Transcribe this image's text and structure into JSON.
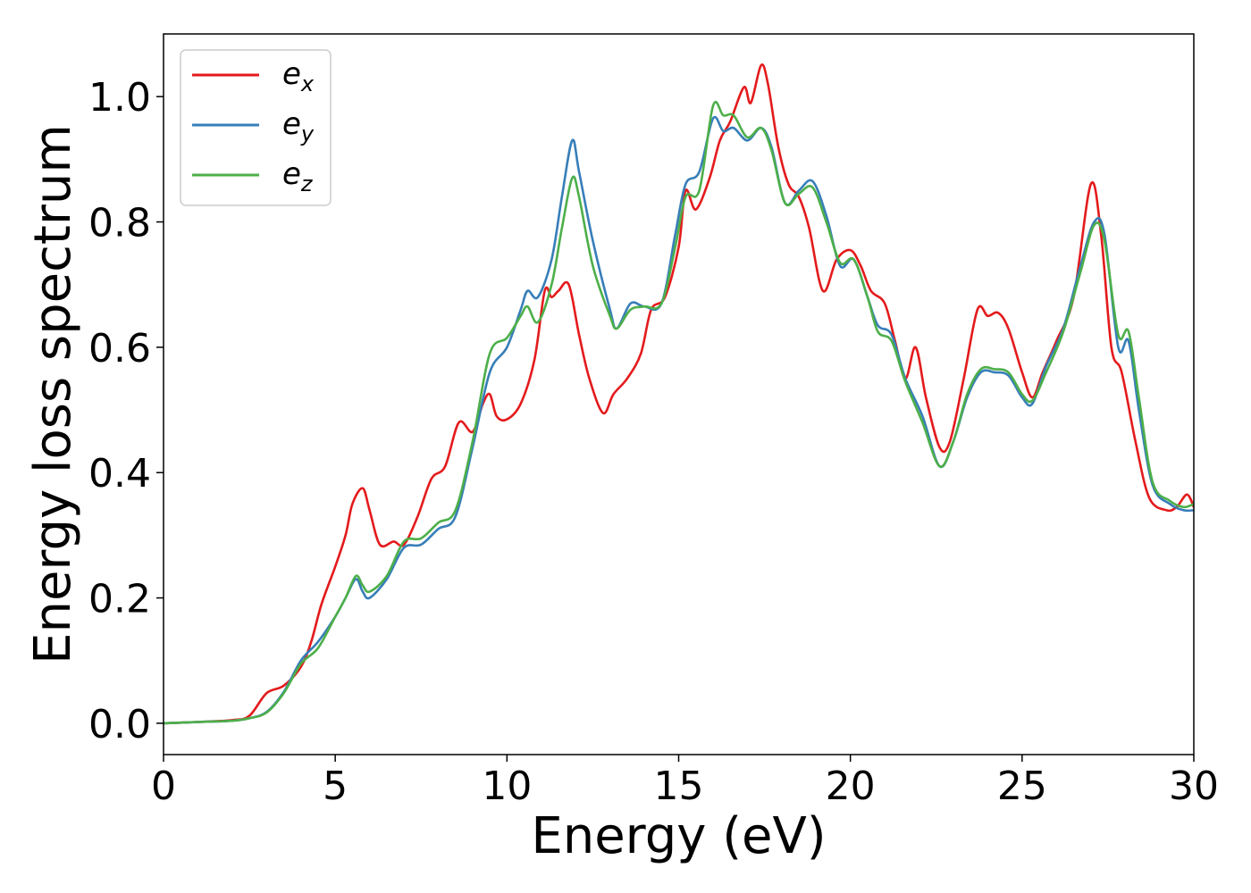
{
  "chart_data": {
    "type": "line",
    "xlabel": "Energy (eV)",
    "ylabel": "Energy loss spectrum",
    "xlim": [
      0,
      30
    ],
    "ylim": [
      -0.05,
      1.1
    ],
    "xticks": [
      0,
      5,
      10,
      15,
      20,
      25,
      30
    ],
    "xtick_labels": [
      "0",
      "5",
      "10",
      "15",
      "20",
      "25",
      "30"
    ],
    "yticks": [
      0.0,
      0.2,
      0.4,
      0.6,
      0.8,
      1.0
    ],
    "ytick_labels": [
      "0.0",
      "0.2",
      "0.4",
      "0.6",
      "0.8",
      "1.0"
    ],
    "grid": false,
    "legend_position": "top-left",
    "series": [
      {
        "name": "e_x",
        "label_main": "e",
        "label_sub": "x",
        "color": "#e41a1c",
        "points": [
          [
            0,
            0.0
          ],
          [
            1,
            0.002
          ],
          [
            2,
            0.005
          ],
          [
            2.5,
            0.012
          ],
          [
            3.0,
            0.048
          ],
          [
            3.5,
            0.06
          ],
          [
            4.0,
            0.09
          ],
          [
            4.3,
            0.13
          ],
          [
            4.6,
            0.19
          ],
          [
            5.0,
            0.25
          ],
          [
            5.3,
            0.3
          ],
          [
            5.5,
            0.35
          ],
          [
            5.8,
            0.375
          ],
          [
            6.0,
            0.34
          ],
          [
            6.3,
            0.285
          ],
          [
            6.7,
            0.29
          ],
          [
            7.0,
            0.285
          ],
          [
            7.4,
            0.33
          ],
          [
            7.8,
            0.39
          ],
          [
            8.2,
            0.41
          ],
          [
            8.6,
            0.48
          ],
          [
            9.0,
            0.465
          ],
          [
            9.3,
            0.51
          ],
          [
            9.5,
            0.525
          ],
          [
            9.7,
            0.49
          ],
          [
            10.0,
            0.485
          ],
          [
            10.4,
            0.51
          ],
          [
            10.8,
            0.58
          ],
          [
            11.1,
            0.69
          ],
          [
            11.3,
            0.68
          ],
          [
            11.5,
            0.69
          ],
          [
            11.8,
            0.7
          ],
          [
            12.1,
            0.62
          ],
          [
            12.4,
            0.55
          ],
          [
            12.8,
            0.495
          ],
          [
            13.1,
            0.525
          ],
          [
            13.5,
            0.55
          ],
          [
            13.9,
            0.59
          ],
          [
            14.2,
            0.66
          ],
          [
            14.6,
            0.68
          ],
          [
            15.0,
            0.76
          ],
          [
            15.2,
            0.85
          ],
          [
            15.5,
            0.82
          ],
          [
            15.9,
            0.87
          ],
          [
            16.2,
            0.93
          ],
          [
            16.5,
            0.96
          ],
          [
            16.9,
            1.015
          ],
          [
            17.1,
            0.99
          ],
          [
            17.4,
            1.05
          ],
          [
            17.6,
            1.02
          ],
          [
            17.9,
            0.92
          ],
          [
            18.2,
            0.86
          ],
          [
            18.5,
            0.84
          ],
          [
            18.8,
            0.79
          ],
          [
            19.2,
            0.69
          ],
          [
            19.6,
            0.74
          ],
          [
            20.0,
            0.755
          ],
          [
            20.3,
            0.73
          ],
          [
            20.6,
            0.69
          ],
          [
            21.0,
            0.67
          ],
          [
            21.3,
            0.61
          ],
          [
            21.6,
            0.55
          ],
          [
            21.9,
            0.6
          ],
          [
            22.2,
            0.52
          ],
          [
            22.6,
            0.44
          ],
          [
            22.9,
            0.45
          ],
          [
            23.3,
            0.55
          ],
          [
            23.7,
            0.66
          ],
          [
            24.0,
            0.65
          ],
          [
            24.3,
            0.655
          ],
          [
            24.6,
            0.63
          ],
          [
            25.0,
            0.56
          ],
          [
            25.3,
            0.52
          ],
          [
            25.6,
            0.56
          ],
          [
            26.0,
            0.61
          ],
          [
            26.5,
            0.68
          ],
          [
            27.0,
            0.86
          ],
          [
            27.3,
            0.78
          ],
          [
            27.6,
            0.6
          ],
          [
            27.9,
            0.56
          ],
          [
            28.3,
            0.45
          ],
          [
            28.7,
            0.36
          ],
          [
            29.2,
            0.34
          ],
          [
            29.5,
            0.345
          ],
          [
            29.8,
            0.365
          ],
          [
            30,
            0.345
          ]
        ]
      },
      {
        "name": "e_y",
        "label_main": "e",
        "label_sub": "y",
        "color": "#377eb8",
        "points": [
          [
            0,
            0.0
          ],
          [
            1,
            0.002
          ],
          [
            2,
            0.004
          ],
          [
            2.5,
            0.008
          ],
          [
            3.0,
            0.018
          ],
          [
            3.5,
            0.05
          ],
          [
            4.0,
            0.1
          ],
          [
            4.5,
            0.13
          ],
          [
            5.0,
            0.17
          ],
          [
            5.3,
            0.2
          ],
          [
            5.6,
            0.23
          ],
          [
            5.8,
            0.21
          ],
          [
            6.0,
            0.2
          ],
          [
            6.5,
            0.23
          ],
          [
            7.0,
            0.28
          ],
          [
            7.5,
            0.285
          ],
          [
            8.0,
            0.31
          ],
          [
            8.5,
            0.33
          ],
          [
            9.0,
            0.44
          ],
          [
            9.5,
            0.56
          ],
          [
            10.0,
            0.6
          ],
          [
            10.4,
            0.66
          ],
          [
            10.6,
            0.69
          ],
          [
            10.9,
            0.68
          ],
          [
            11.3,
            0.74
          ],
          [
            11.6,
            0.84
          ],
          [
            11.9,
            0.93
          ],
          [
            12.1,
            0.88
          ],
          [
            12.5,
            0.77
          ],
          [
            13.0,
            0.66
          ],
          [
            13.2,
            0.63
          ],
          [
            13.6,
            0.67
          ],
          [
            14.0,
            0.665
          ],
          [
            14.5,
            0.67
          ],
          [
            14.9,
            0.78
          ],
          [
            15.2,
            0.86
          ],
          [
            15.6,
            0.88
          ],
          [
            16.0,
            0.965
          ],
          [
            16.3,
            0.945
          ],
          [
            16.6,
            0.95
          ],
          [
            17.0,
            0.93
          ],
          [
            17.4,
            0.95
          ],
          [
            17.7,
            0.92
          ],
          [
            18.1,
            0.83
          ],
          [
            18.5,
            0.85
          ],
          [
            18.9,
            0.865
          ],
          [
            19.3,
            0.81
          ],
          [
            19.7,
            0.73
          ],
          [
            20.1,
            0.74
          ],
          [
            20.5,
            0.68
          ],
          [
            20.8,
            0.635
          ],
          [
            21.2,
            0.62
          ],
          [
            21.6,
            0.55
          ],
          [
            22.1,
            0.49
          ],
          [
            22.6,
            0.41
          ],
          [
            23.0,
            0.45
          ],
          [
            23.4,
            0.52
          ],
          [
            23.8,
            0.56
          ],
          [
            24.2,
            0.56
          ],
          [
            24.6,
            0.555
          ],
          [
            25.0,
            0.52
          ],
          [
            25.3,
            0.51
          ],
          [
            25.7,
            0.57
          ],
          [
            26.2,
            0.63
          ],
          [
            26.7,
            0.73
          ],
          [
            27.1,
            0.8
          ],
          [
            27.4,
            0.78
          ],
          [
            27.8,
            0.6
          ],
          [
            28.1,
            0.61
          ],
          [
            28.4,
            0.5
          ],
          [
            28.8,
            0.38
          ],
          [
            29.3,
            0.35
          ],
          [
            29.7,
            0.34
          ],
          [
            30,
            0.34
          ]
        ]
      },
      {
        "name": "e_z",
        "label_main": "e",
        "label_sub": "z",
        "color": "#4daf4a",
        "points": [
          [
            0,
            0.0
          ],
          [
            1,
            0.002
          ],
          [
            2,
            0.004
          ],
          [
            2.5,
            0.008
          ],
          [
            3.0,
            0.017
          ],
          [
            3.5,
            0.048
          ],
          [
            4.0,
            0.095
          ],
          [
            4.5,
            0.12
          ],
          [
            5.0,
            0.17
          ],
          [
            5.3,
            0.2
          ],
          [
            5.6,
            0.235
          ],
          [
            5.8,
            0.22
          ],
          [
            6.0,
            0.21
          ],
          [
            6.5,
            0.235
          ],
          [
            7.0,
            0.29
          ],
          [
            7.5,
            0.295
          ],
          [
            8.0,
            0.32
          ],
          [
            8.5,
            0.34
          ],
          [
            9.0,
            0.45
          ],
          [
            9.5,
            0.59
          ],
          [
            10.0,
            0.615
          ],
          [
            10.4,
            0.65
          ],
          [
            10.6,
            0.665
          ],
          [
            10.9,
            0.64
          ],
          [
            11.3,
            0.7
          ],
          [
            11.6,
            0.79
          ],
          [
            11.9,
            0.87
          ],
          [
            12.1,
            0.84
          ],
          [
            12.5,
            0.73
          ],
          [
            13.0,
            0.65
          ],
          [
            13.2,
            0.63
          ],
          [
            13.6,
            0.66
          ],
          [
            14.0,
            0.665
          ],
          [
            14.5,
            0.67
          ],
          [
            14.9,
            0.76
          ],
          [
            15.2,
            0.84
          ],
          [
            15.6,
            0.85
          ],
          [
            16.0,
            0.985
          ],
          [
            16.3,
            0.97
          ],
          [
            16.6,
            0.97
          ],
          [
            17.0,
            0.935
          ],
          [
            17.4,
            0.95
          ],
          [
            17.7,
            0.915
          ],
          [
            18.1,
            0.83
          ],
          [
            18.5,
            0.845
          ],
          [
            18.9,
            0.855
          ],
          [
            19.3,
            0.8
          ],
          [
            19.7,
            0.735
          ],
          [
            20.1,
            0.74
          ],
          [
            20.5,
            0.68
          ],
          [
            20.8,
            0.625
          ],
          [
            21.2,
            0.61
          ],
          [
            21.6,
            0.545
          ],
          [
            22.1,
            0.48
          ],
          [
            22.6,
            0.41
          ],
          [
            23.0,
            0.45
          ],
          [
            23.4,
            0.525
          ],
          [
            23.8,
            0.565
          ],
          [
            24.2,
            0.565
          ],
          [
            24.6,
            0.56
          ],
          [
            25.0,
            0.525
          ],
          [
            25.3,
            0.515
          ],
          [
            25.7,
            0.56
          ],
          [
            26.2,
            0.625
          ],
          [
            26.7,
            0.72
          ],
          [
            27.1,
            0.795
          ],
          [
            27.4,
            0.77
          ],
          [
            27.8,
            0.62
          ],
          [
            28.1,
            0.625
          ],
          [
            28.4,
            0.52
          ],
          [
            28.8,
            0.385
          ],
          [
            29.3,
            0.355
          ],
          [
            29.7,
            0.345
          ],
          [
            30,
            0.35
          ]
        ]
      }
    ]
  }
}
